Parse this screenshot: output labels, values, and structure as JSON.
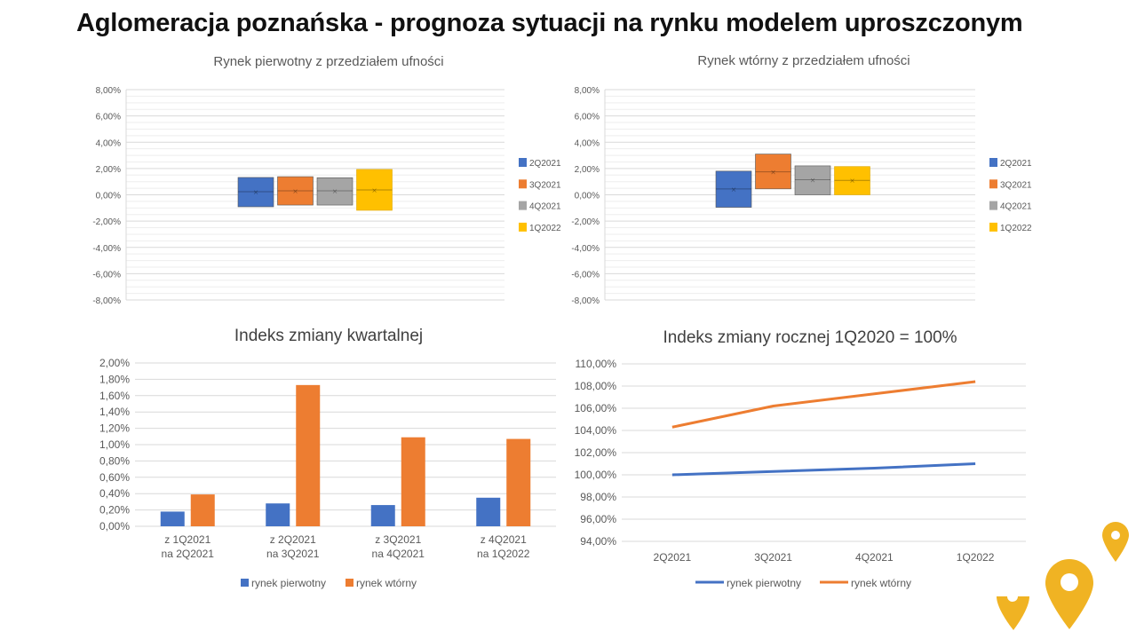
{
  "title": "Aglomeracja poznańska - prognoza sytuacji na rynku modelem uproszczonym",
  "chart_data": [
    {
      "type": "box",
      "title": "Rynek pierwotny z przedziałem ufności",
      "ylim": [
        -0.08,
        0.08
      ],
      "yticks": [
        "8,00%",
        "6,00%",
        "4,00%",
        "2,00%",
        "0,00%",
        "-2,00%",
        "-4,00%",
        "-6,00%",
        "-8,00%"
      ],
      "legend_position": "right",
      "grid": true,
      "series": [
        {
          "name": "2Q2021",
          "color": "#4472C4",
          "low": -0.0091,
          "high": 0.0132,
          "mean": 0.0024
        },
        {
          "name": "3Q2021",
          "color": "#ED7D31",
          "low": -0.0078,
          "high": 0.0138,
          "mean": 0.003
        },
        {
          "name": "4Q2021",
          "color": "#A5A5A5",
          "low": -0.0078,
          "high": 0.013,
          "mean": 0.003
        },
        {
          "name": "1Q2022",
          "color": "#FFC000",
          "low": -0.0118,
          "high": 0.0193,
          "mean": 0.0037
        }
      ]
    },
    {
      "type": "box",
      "title": "Rynek wtórny z przedziałem ufności",
      "ylim": [
        -0.08,
        0.08
      ],
      "yticks": [
        "8,00%",
        "6,00%",
        "4,00%",
        "2,00%",
        "0,00%",
        "-2,00%",
        "-4,00%",
        "-6,00%",
        "-8,00%"
      ],
      "legend_position": "right",
      "grid": true,
      "series": [
        {
          "name": "2Q2021",
          "color": "#4472C4",
          "low": -0.0095,
          "high": 0.018,
          "mean": 0.0045
        },
        {
          "name": "3Q2021",
          "color": "#ED7D31",
          "low": 0.0045,
          "high": 0.031,
          "mean": 0.0175
        },
        {
          "name": "4Q2021",
          "color": "#A5A5A5",
          "low": 0.0,
          "high": 0.022,
          "mean": 0.0115
        },
        {
          "name": "1Q2022",
          "color": "#FFC000",
          "low": 0.0,
          "high": 0.0215,
          "mean": 0.011
        }
      ]
    },
    {
      "type": "bar",
      "title": "Indeks zmiany kwartalnej",
      "ylim": [
        0,
        0.02
      ],
      "yticks": [
        "2,00%",
        "1,80%",
        "1,60%",
        "1,40%",
        "1,20%",
        "1,00%",
        "0,80%",
        "0,60%",
        "0,40%",
        "0,20%",
        "0,00%"
      ],
      "categories": [
        [
          "z 1Q2021",
          "na 2Q2021"
        ],
        [
          "z 2Q2021",
          "na 3Q2021"
        ],
        [
          "z 3Q2021",
          "na 4Q2021"
        ],
        [
          "z 4Q2021",
          "na 1Q2022"
        ]
      ],
      "legend_position": "bottom",
      "grid": true,
      "series": [
        {
          "name": "rynek pierwotny",
          "color": "#4472C4",
          "values": [
            0.0018,
            0.0028,
            0.0026,
            0.0035
          ]
        },
        {
          "name": "rynek wtórny",
          "color": "#ED7D31",
          "values": [
            0.0039,
            0.0173,
            0.0109,
            0.0107
          ]
        }
      ]
    },
    {
      "type": "line",
      "title": "Indeks zmiany rocznej 1Q2020 = 100%",
      "ylim": [
        0.94,
        1.1
      ],
      "yticks": [
        "110,00%",
        "108,00%",
        "106,00%",
        "104,00%",
        "102,00%",
        "100,00%",
        "98,00%",
        "96,00%",
        "94,00%"
      ],
      "categories": [
        "2Q2021",
        "3Q2021",
        "4Q2021",
        "1Q2022"
      ],
      "legend_position": "bottom",
      "grid": true,
      "series": [
        {
          "name": "rynek pierwotny",
          "color": "#4472C4",
          "values": [
            1.0,
            1.003,
            1.006,
            1.01
          ]
        },
        {
          "name": "rynek wtórny",
          "color": "#ED7D31",
          "values": [
            1.043,
            1.062,
            1.073,
            1.084
          ]
        }
      ]
    }
  ],
  "decor": {
    "pin_color": "#F0B323"
  }
}
